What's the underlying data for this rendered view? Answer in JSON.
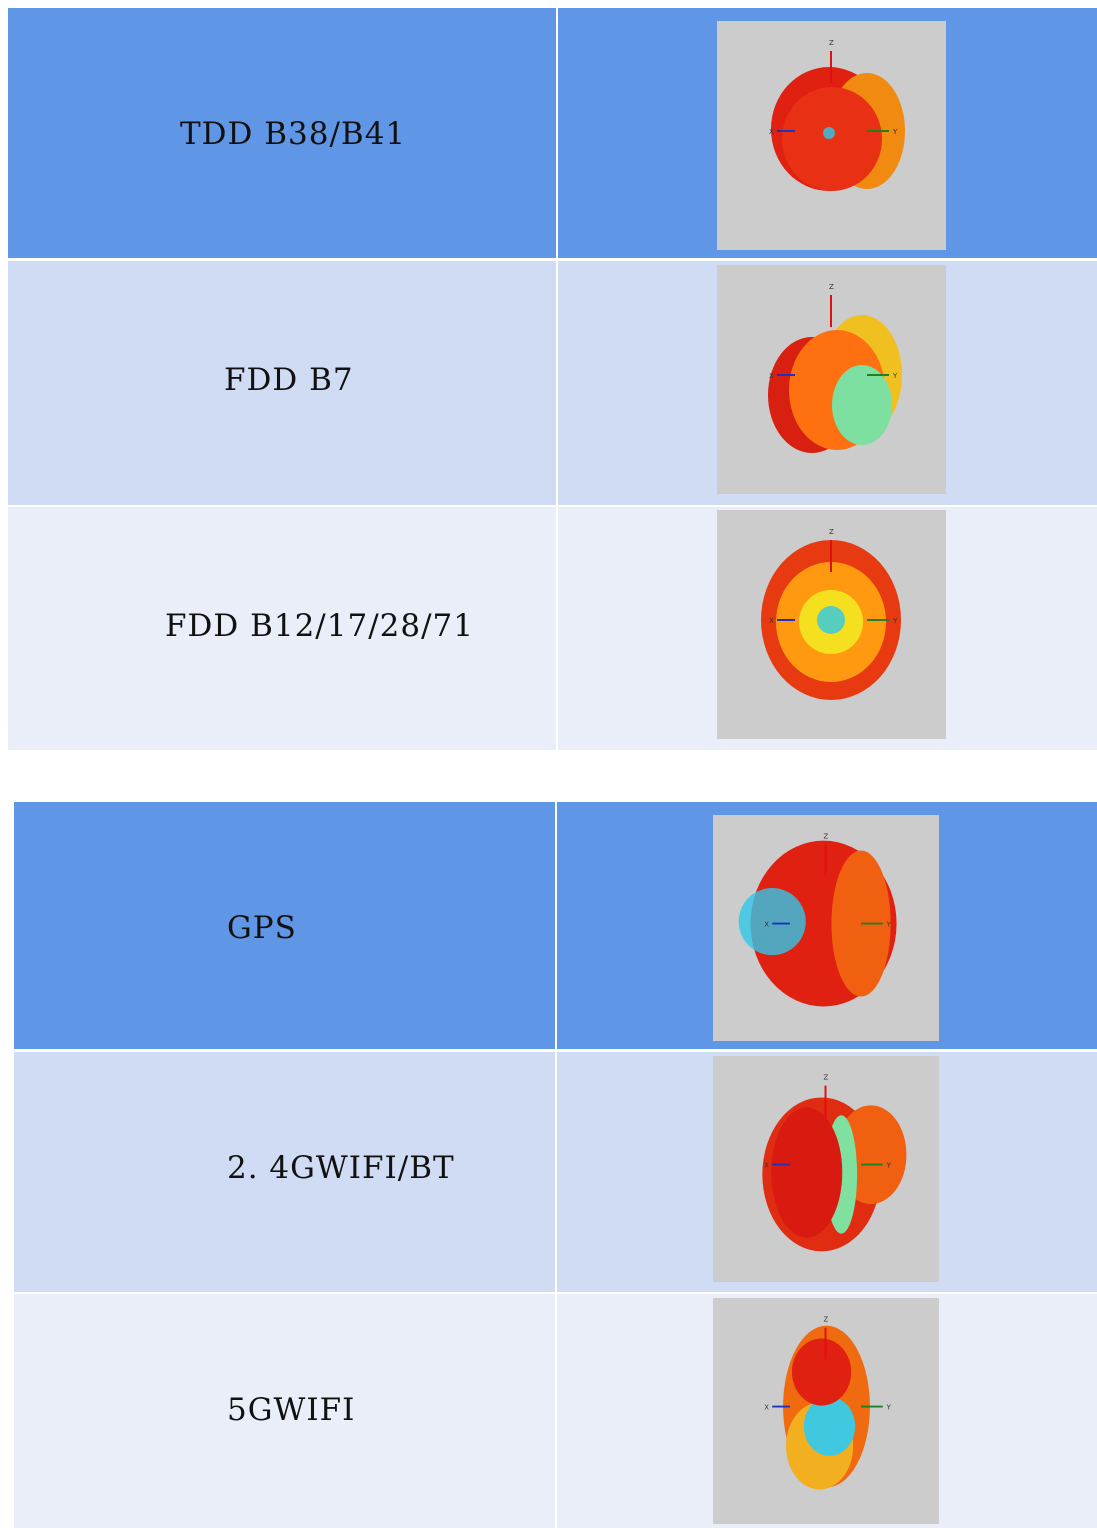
{
  "tables": [
    {
      "rows": [
        {
          "label": "TDD B38/B41",
          "pattern": "tdd-b38-b41"
        },
        {
          "label": "FDD B7",
          "pattern": "fdd-b7"
        },
        {
          "label": "FDD B12/17/28/71",
          "pattern": "fdd-b12"
        }
      ]
    },
    {
      "rows": [
        {
          "label": "GPS",
          "pattern": "gps"
        },
        {
          "label": "2. 4GWIFI/BT",
          "pattern": "wifi24"
        },
        {
          "label": "5GWIFI",
          "pattern": "wifi5"
        }
      ]
    }
  ],
  "axis_labels": {
    "x": "X",
    "y": "Y",
    "z": "Z"
  },
  "colors": {
    "header_row": "#6096e6",
    "row_2": "#d0dcf4",
    "row_3": "#e9eef8",
    "plot_bg": "#cccccc"
  }
}
